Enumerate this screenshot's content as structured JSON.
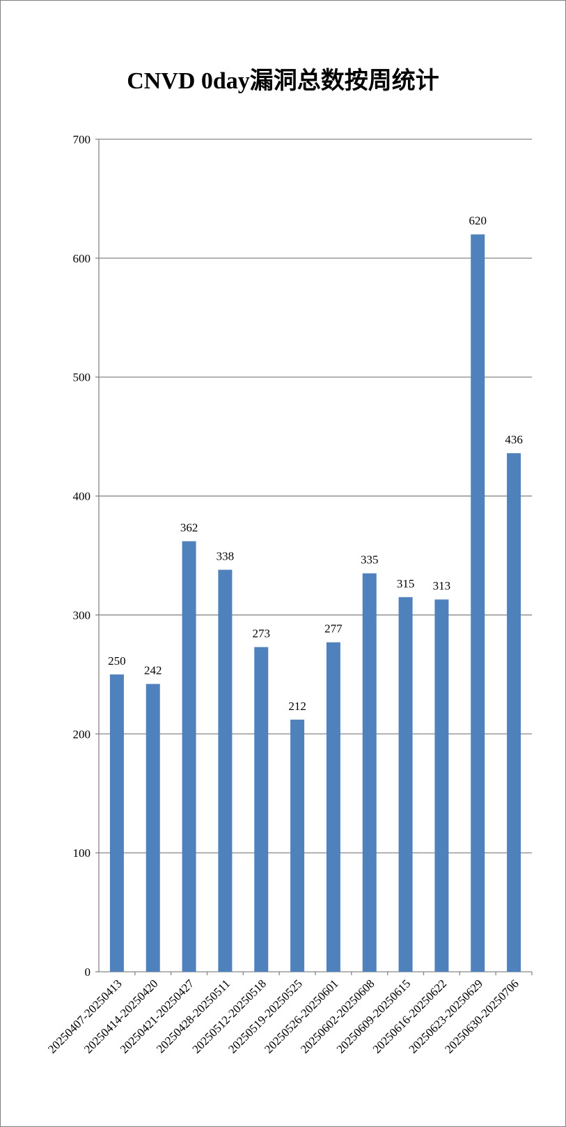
{
  "chart_data": {
    "type": "bar",
    "title": "CNVD 0day漏洞总数按周统计",
    "categories": [
      "20250407-20250413",
      "20250414-20250420",
      "20250421-20250427",
      "20250428-20250511",
      "20250512-20250518",
      "20250519-20250525",
      "20250526-20250601",
      "20250602-20250608",
      "20250609-20250615",
      "20250616-20250622",
      "20250623-20250629",
      "20250630-20250706"
    ],
    "values": [
      250,
      242,
      362,
      338,
      273,
      212,
      277,
      335,
      315,
      313,
      620,
      436
    ],
    "ylim": [
      0,
      700
    ],
    "yticks": [
      0,
      100,
      200,
      300,
      400,
      500,
      600,
      700
    ],
    "grid": true,
    "bar_color": "#4f81bd",
    "grid_color": "#868686"
  }
}
